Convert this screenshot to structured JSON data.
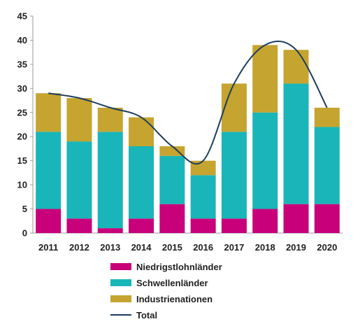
{
  "chart_data": {
    "type": "bar",
    "stacked": true,
    "categories": [
      "2011",
      "2012",
      "2013",
      "2014",
      "2015",
      "2016",
      "2017",
      "2018",
      "2019",
      "2020"
    ],
    "series": [
      {
        "name": "Niedrigstlohnländer",
        "color": "#c8007a",
        "values": [
          5,
          3,
          1,
          3,
          6,
          3,
          3,
          5,
          6,
          6
        ]
      },
      {
        "name": "Schwellenländer",
        "color": "#19b5b9",
        "values": [
          16,
          16,
          20,
          15,
          10,
          9,
          18,
          20,
          25,
          16
        ]
      },
      {
        "name": "Industrienationen",
        "color": "#c5a42f",
        "values": [
          8,
          9,
          5,
          6,
          2,
          3,
          10,
          14,
          7,
          4
        ]
      }
    ],
    "line_series": {
      "name": "Total",
      "type": "line",
      "smooth": true,
      "color": "#1d3d5e",
      "values": [
        29,
        28,
        26,
        24,
        18,
        15,
        31,
        39,
        38,
        26
      ]
    },
    "ylim": [
      0,
      45
    ],
    "yticks": [
      0,
      5,
      10,
      15,
      20,
      25,
      30,
      35,
      40,
      45
    ],
    "grid": false,
    "legend_position": "bottom"
  }
}
